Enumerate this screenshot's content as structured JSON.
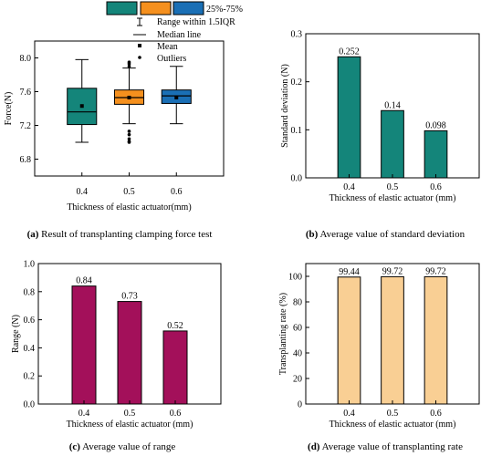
{
  "chart_data": [
    {
      "type": "box",
      "legend": {
        "box_fill_label": "25%-75%",
        "whisker_label": "Range within 1.5IQR",
        "median_label": "Median line",
        "mean_label": "Mean",
        "outlier_label": "Outliers",
        "fill_swatches": [
          "#14857a",
          "#f5901e",
          "#1a6fb5"
        ]
      },
      "categories": [
        "0.4",
        "0.5",
        "0.6"
      ],
      "boxes": [
        {
          "category": "0.4",
          "whisker_low": 7.0,
          "q1": 7.21,
          "median": 7.36,
          "q3": 7.64,
          "whisker_high": 7.98,
          "mean": 7.43,
          "outliers": [],
          "color": "#14857a"
        },
        {
          "category": "0.5",
          "whisker_low": 7.22,
          "q1": 7.45,
          "median": 7.53,
          "q3": 7.62,
          "whisker_high": 7.88,
          "mean": 7.53,
          "outliers": [
            7.9,
            7.93,
            7.95,
            7.13,
            7.09,
            7.04,
            7.01,
            7.0
          ],
          "color": "#f5901e"
        },
        {
          "category": "0.6",
          "whisker_low": 7.22,
          "q1": 7.46,
          "median": 7.55,
          "q3": 7.62,
          "whisker_high": 7.9,
          "mean": 7.53,
          "outliers": [],
          "color": "#1a6fb5"
        }
      ],
      "xlabel": "Thickness of elastic actuator(mm)",
      "ylabel": "Force(N)",
      "ylim": [
        6.6,
        8.2
      ],
      "yticks": [
        "6.8",
        "7.2",
        "7.6",
        "8.0"
      ],
      "caption_letter": "(a)",
      "caption_text": "Result of transplanting clamping force test"
    },
    {
      "type": "bar",
      "categories": [
        "0.4",
        "0.5",
        "0.6"
      ],
      "values": [
        0.252,
        0.14,
        0.098
      ],
      "labels": [
        "0.252",
        "0.14",
        "0.098"
      ],
      "color": "#14857a",
      "xlabel": "Thickness of elastic actuator (mm)",
      "ylabel": "Standard deviation (N)",
      "ylim": [
        0,
        0.3
      ],
      "yticks": [
        "0.0",
        "0.1",
        "0.2",
        "0.3"
      ],
      "caption_letter": "(b)",
      "caption_text": "Average value of standard deviation"
    },
    {
      "type": "bar",
      "categories": [
        "0.4",
        "0.5",
        "0.6"
      ],
      "values": [
        0.84,
        0.73,
        0.52
      ],
      "labels": [
        "0.84",
        "0.73",
        "0.52"
      ],
      "color": "#a3105a",
      "xlabel": "Thickness of elastic actuator (mm)",
      "ylabel": "Range (N)",
      "ylim": [
        0,
        1.0
      ],
      "yticks": [
        "0.0",
        "0.2",
        "0.4",
        "0.6",
        "0.8",
        "1.0"
      ],
      "caption_letter": "(c)",
      "caption_text": "Average value of range"
    },
    {
      "type": "bar",
      "categories": [
        "0.4",
        "0.5",
        "0.6"
      ],
      "values": [
        99.44,
        99.72,
        99.72
      ],
      "labels": [
        "99.44",
        "99.72",
        "99.72"
      ],
      "color": "#f9cf94",
      "xlabel": "Thickness of elastic actuator (mm)",
      "ylabel": "Transplanting rate (%)",
      "ylim": [
        0,
        110
      ],
      "yticks": [
        "0",
        "20",
        "40",
        "60",
        "80",
        "100"
      ],
      "caption_letter": "(d)",
      "caption_text": "Average value of transplanting rate"
    }
  ]
}
